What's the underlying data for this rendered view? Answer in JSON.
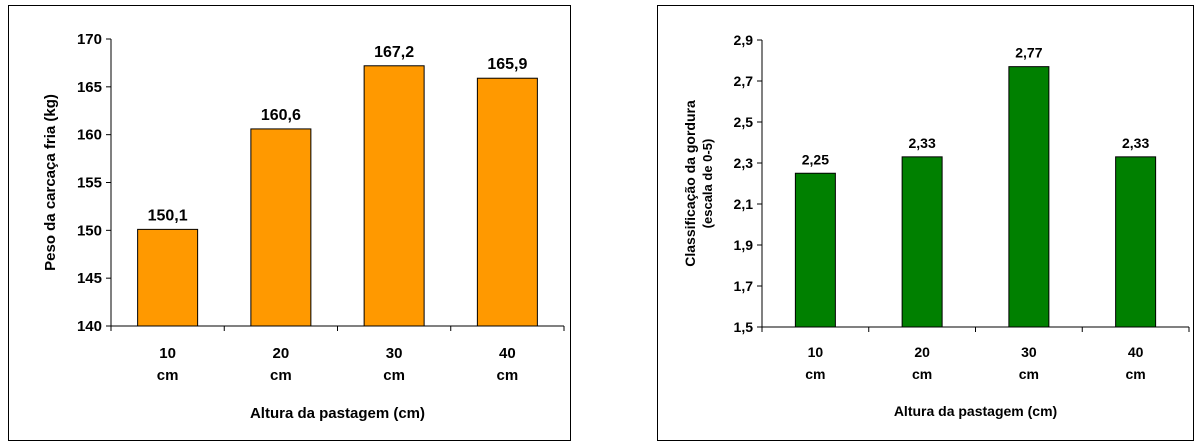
{
  "chart_data": [
    {
      "type": "bar",
      "categories": [
        "10 cm",
        "20 cm",
        "30 cm",
        "40 cm"
      ],
      "category_lines": [
        [
          "10",
          "cm"
        ],
        [
          "20",
          "cm"
        ],
        [
          "30",
          "cm"
        ],
        [
          "40",
          "cm"
        ]
      ],
      "values": [
        150.1,
        160.6,
        167.2,
        165.9
      ],
      "data_labels": [
        "150,1",
        "160,6",
        "167,2",
        "165,9"
      ],
      "xlabel": "Altura da pastagem (cm)",
      "ylabel": "Peso da carcaça fria (kg)",
      "ylim": [
        140,
        170
      ],
      "yticks": [
        140,
        145,
        150,
        155,
        160,
        165,
        170
      ],
      "ytick_labels": [
        "140",
        "145",
        "150",
        "155",
        "160",
        "165",
        "170"
      ],
      "grid": false,
      "bar_color": "#FF9900"
    },
    {
      "type": "bar",
      "categories": [
        "10 cm",
        "20 cm",
        "30 cm",
        "40 cm"
      ],
      "category_lines": [
        [
          "10",
          "cm"
        ],
        [
          "20",
          "cm"
        ],
        [
          "30",
          "cm"
        ],
        [
          "40",
          "cm"
        ]
      ],
      "values": [
        2.25,
        2.33,
        2.77,
        2.33
      ],
      "data_labels": [
        "2,25",
        "2,33",
        "2,77",
        "2,33"
      ],
      "xlabel": "Altura da pastagem (cm)",
      "ylabel": "Classificação da gordura",
      "ylabel_line2": "(escala de 0-5)",
      "ylim": [
        1.5,
        2.9
      ],
      "yticks": [
        1.5,
        1.7,
        1.9,
        2.1,
        2.3,
        2.5,
        2.7,
        2.9
      ],
      "ytick_labels": [
        "1,5",
        "1,7",
        "1,9",
        "2,1",
        "2,3",
        "2,5",
        "2,7",
        "2,9"
      ],
      "grid": false,
      "bar_color": "#008000"
    }
  ]
}
